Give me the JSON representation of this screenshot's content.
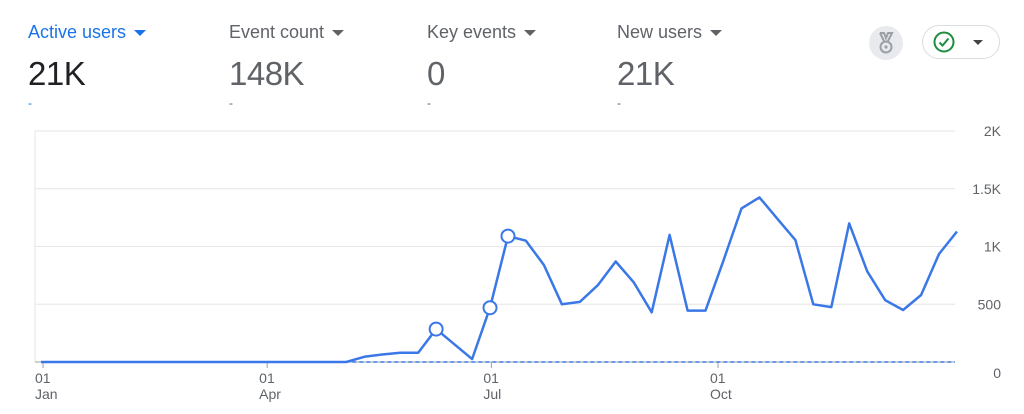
{
  "metrics": [
    {
      "label": "Active users",
      "value": "21K",
      "change": "-",
      "active": true
    },
    {
      "label": "Event count",
      "value": "148K",
      "change": "-",
      "active": false
    },
    {
      "label": "Key events",
      "value": "0",
      "change": "-",
      "active": false
    },
    {
      "label": "New users",
      "value": "21K",
      "change": "-",
      "active": false
    }
  ],
  "icons": {
    "medal": "medal-icon",
    "status": "check-circle-icon"
  },
  "colors": {
    "accent": "#1a73e8",
    "line": "#3b78e7",
    "status_green": "#1e8e3e",
    "grid": "#e6e6e6"
  },
  "chart_data": {
    "type": "line",
    "title": "",
    "xlabel": "",
    "ylabel": "",
    "ylim": [
      0,
      2000
    ],
    "y_ticks": [
      "0",
      "500",
      "1K",
      "1.5K",
      "2K"
    ],
    "y_tick_values": [
      0,
      500,
      1000,
      1500,
      2000
    ],
    "x_ticks": [
      {
        "day": "01",
        "month": "Jan"
      },
      {
        "day": "01",
        "month": "Apr"
      },
      {
        "day": "01",
        "month": "Jul"
      },
      {
        "day": "01",
        "month": "Oct"
      }
    ],
    "x_tick_dates": [
      "2024-01-01",
      "2024-04-01",
      "2024-07-01",
      "2024-10-01"
    ],
    "grid": true,
    "y_axis_position": "right",
    "series": [
      {
        "x_start": "2023-12-31",
        "x_interval": "week",
        "values": [
          0,
          0,
          0,
          0,
          0,
          0,
          0,
          0,
          0,
          0,
          0,
          0,
          0,
          0,
          0,
          0,
          0,
          0,
          45,
          65,
          80,
          80,
          285,
          155,
          25,
          470,
          1090,
          1050,
          840,
          500,
          520,
          665,
          870,
          690,
          430,
          1100,
          445,
          445,
          880,
          1330,
          1425,
          1240,
          1055,
          500,
          475,
          1200,
          785,
          535,
          450,
          580,
          935,
          1130
        ],
        "anomaly_indices": [
          22,
          25,
          26
        ]
      }
    ],
    "baseline": {
      "value": 0,
      "style": "dashed"
    }
  }
}
